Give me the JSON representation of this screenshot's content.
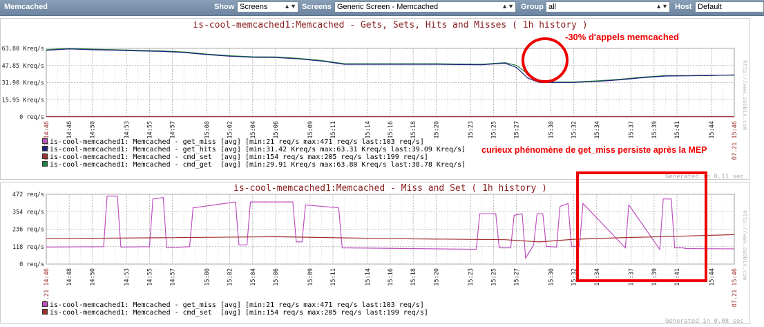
{
  "header": {
    "app_title": "Memcached",
    "show_label": "Show",
    "show_value": "Screens",
    "screens_label": "Screens",
    "screens_value": "Generic Screen - Memcached",
    "group_label": "Group",
    "group_value": "all",
    "host_label": "Host",
    "host_value": "Default"
  },
  "graph1": {
    "title": "is-cool-memcached1:Memcached - Gets, Sets, Hits and Misses ( 1h history )",
    "generated": "Generated in 0.11 sec",
    "watermark": "http://www.zabbix.com",
    "date_start": "07.21 14:46",
    "date_end": "07.21 15:46",
    "legend": [
      {
        "text": "is-cool-memcached1: Memcached - get_miss [avg] [min:21 req/s max:471 req/s last:103 req/s]",
        "color": "#c050c0"
      },
      {
        "text": "is-cool-memcached1: Memcached - get_hits [avg] [min:31.42 Kreq/s max:63.31 Kreq/s last:39.09 Kreq/s]",
        "color": "#202080"
      },
      {
        "text": "is-cool-memcached1: Memcached - cmd_set  [avg] [min:154 req/s max:205 req/s last:199 req/s]",
        "color": "#a03030"
      },
      {
        "text": "is-cool-memcached1: Memcached - cmd_get  [avg] [min:29.91 Kreq/s max:63.80 Kreq/s last:38.78 Kreq/s]",
        "color": "#208040"
      }
    ]
  },
  "graph2": {
    "title": "is-cool-memcached1:Memcached - Miss and Set ( 1h history )",
    "generated": "Generated in 0.08 sec",
    "watermark": "http://www.zabbix.com",
    "date_start": "07.21 14:46",
    "date_end": "07.21 15:46",
    "legend": [
      {
        "text": "is-cool-memcached1: Memcached - get_miss [avg] [min:21 req/s max:471 req/s last:103 req/s]",
        "color": "#c050c0"
      },
      {
        "text": "is-cool-memcached1: Memcached - cmd_set  [avg] [min:154 req/s max:205 req/s last:199 req/s]",
        "color": "#a03030"
      }
    ]
  },
  "annotations": {
    "drop": "-30% d'appels memcached",
    "miss": "curieux phénomène de get_miss persiste après la MEP"
  },
  "chart_data": [
    {
      "type": "line",
      "title": "is-cool-memcached1:Memcached - Gets, Sets, Hits and Misses ( 1h history )",
      "ylim": [
        0,
        63.8
      ],
      "y_unit": "Kreq/s",
      "y_ticks": [
        "0 req/s",
        "15.95 Kreq/s",
        "31.90 Kreq/s",
        "47.85 Kreq/s",
        "63.80 Kreq/s"
      ],
      "y_tick_values": [
        0,
        15.95,
        31.9,
        47.85,
        63.8
      ],
      "x_ticks": [
        "14:48",
        "14:50",
        "14:53",
        "14:55",
        "14:57",
        "15:00",
        "15:02",
        "15:04",
        "15:06",
        "15:09",
        "15:11",
        "15:14",
        "15:16",
        "15:18",
        "15:20",
        "15:23",
        "15:25",
        "15:27",
        "15:30",
        "15:32",
        "15:34",
        "15:37",
        "15:39",
        "15:41",
        "15:44"
      ],
      "x_tick_minutes": [
        2,
        4,
        7,
        9,
        11,
        14,
        16,
        18,
        20,
        23,
        25,
        28,
        30,
        32,
        34,
        37,
        39,
        41,
        44,
        46,
        48,
        51,
        53,
        55,
        58
      ],
      "xlim_minutes": [
        0,
        60
      ],
      "series": [
        {
          "name": "cmd_get",
          "color": "#208040",
          "x": [
            0,
            2,
            4,
            6,
            8,
            10,
            12,
            14,
            16,
            18,
            20,
            22,
            24,
            26,
            28,
            30,
            32,
            34,
            36,
            38,
            40,
            41,
            42,
            43,
            44,
            46,
            48,
            50,
            52,
            54,
            56,
            58,
            60
          ],
          "values": [
            62.5,
            63.8,
            63.0,
            62.6,
            62.0,
            61.5,
            60.5,
            58.5,
            57.0,
            56.0,
            55.8,
            54.5,
            52.5,
            49.5,
            49.5,
            49.5,
            49.5,
            49.5,
            49.2,
            49.0,
            50.5,
            48.0,
            40.0,
            33.5,
            32.5,
            32.5,
            33.5,
            35.0,
            37.0,
            38.5,
            38.5,
            38.8,
            38.8
          ]
        },
        {
          "name": "get_hits",
          "color": "#202080",
          "x": [
            0,
            2,
            4,
            6,
            8,
            10,
            12,
            14,
            16,
            18,
            20,
            22,
            24,
            26,
            28,
            30,
            32,
            34,
            36,
            38,
            40,
            41,
            42,
            43,
            44,
            46,
            48,
            50,
            52,
            54,
            56,
            58,
            60
          ],
          "values": [
            62.0,
            63.3,
            62.5,
            62.1,
            61.5,
            61.0,
            60.0,
            58.0,
            56.5,
            55.5,
            55.3,
            54.0,
            52.0,
            49.0,
            49.0,
            49.0,
            49.0,
            49.0,
            48.7,
            48.5,
            50.0,
            46.0,
            36.0,
            32.0,
            32.0,
            32.0,
            33.0,
            34.5,
            36.5,
            38.0,
            38.2,
            38.5,
            39.1
          ]
        },
        {
          "name": "get_miss",
          "color": "#c050c0",
          "x": [
            0,
            60
          ],
          "values": [
            0.1,
            0.1
          ]
        },
        {
          "name": "cmd_set",
          "color": "#a03030",
          "x": [
            0,
            60
          ],
          "values": [
            0.2,
            0.2
          ]
        }
      ]
    },
    {
      "type": "line",
      "title": "is-cool-memcached1:Memcached - Miss and Set ( 1h history )",
      "ylim": [
        0,
        472
      ],
      "y_unit": "req/s",
      "y_ticks": [
        "0 req/s",
        "118 req/s",
        "236 req/s",
        "354 req/s",
        "472 req/s"
      ],
      "y_tick_values": [
        0,
        118,
        236,
        354,
        472
      ],
      "x_ticks": [
        "14:48",
        "14:50",
        "14:53",
        "14:55",
        "14:57",
        "15:00",
        "15:02",
        "15:04",
        "15:06",
        "15:09",
        "15:11",
        "15:14",
        "15:16",
        "15:18",
        "15:20",
        "15:23",
        "15:25",
        "15:27",
        "15:30",
        "15:32",
        "15:34",
        "15:37",
        "15:39",
        "15:41",
        "15:44"
      ],
      "x_tick_minutes": [
        2,
        4,
        7,
        9,
        11,
        14,
        16,
        18,
        20,
        23,
        25,
        28,
        30,
        32,
        34,
        37,
        39,
        41,
        44,
        46,
        48,
        51,
        53,
        55,
        58
      ],
      "xlim_minutes": [
        0,
        60
      ],
      "series": [
        {
          "name": "get_miss",
          "color": "#c050c0",
          "x": [
            0,
            5.0,
            5.3,
            6.2,
            6.5,
            9.0,
            9.3,
            10.2,
            10.5,
            12.5,
            12.8,
            16.5,
            16.8,
            17.5,
            17.8,
            21.5,
            21.8,
            22.3,
            22.6,
            25.5,
            25.8,
            37.5,
            37.8,
            39.2,
            39.5,
            40.5,
            40.8,
            41.5,
            41.8,
            42.5,
            42.8,
            43.3,
            43.6,
            44.5,
            44.8,
            45.5,
            45.8,
            46.5,
            46.8,
            50.5,
            50.8,
            53.5,
            53.8,
            54.5,
            54.8,
            55.5,
            55.8,
            60
          ],
          "values": [
            115,
            118,
            460,
            460,
            115,
            118,
            440,
            450,
            110,
            118,
            380,
            420,
            130,
            130,
            420,
            420,
            150,
            150,
            400,
            380,
            110,
            100,
            340,
            340,
            110,
            110,
            330,
            340,
            40,
            130,
            340,
            340,
            120,
            115,
            390,
            410,
            120,
            120,
            410,
            110,
            400,
            100,
            440,
            440,
            110,
            110,
            105,
            103
          ]
        },
        {
          "name": "cmd_set",
          "color": "#a03030",
          "x": [
            0,
            10,
            20,
            30,
            40,
            43,
            46,
            50,
            55,
            60
          ],
          "values": [
            172,
            178,
            185,
            172,
            165,
            150,
            168,
            178,
            188,
            199
          ]
        }
      ]
    }
  ]
}
